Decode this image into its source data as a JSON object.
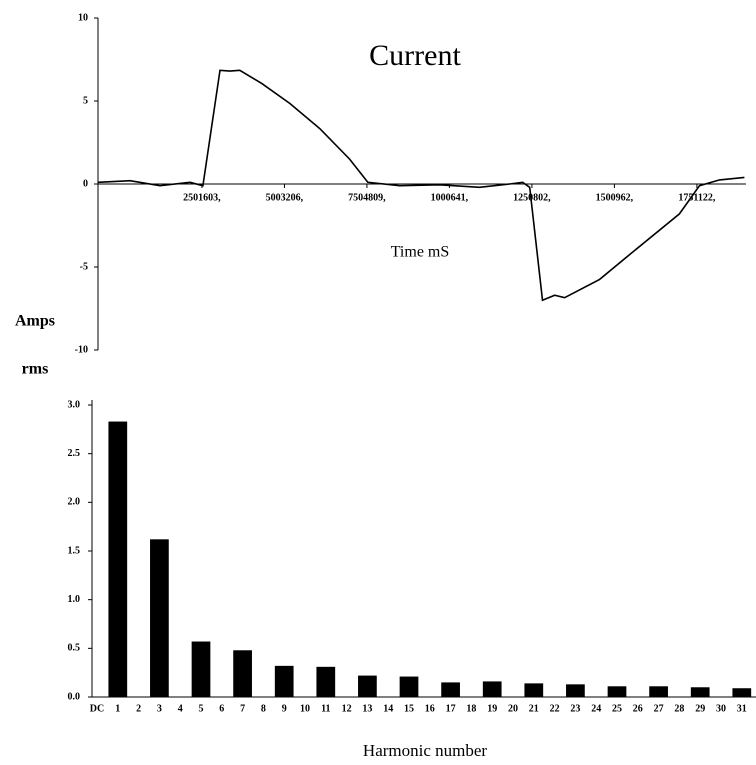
{
  "chart_data": [
    {
      "type": "line",
      "title": "Current",
      "xlabel": "Time mS",
      "ylabel": [
        "Amps",
        "rms"
      ],
      "x": [
        -0.65,
        0.32,
        1.23,
        2.14,
        2.53,
        3.05,
        3.35,
        3.65,
        4.32,
        5.17,
        6.08,
        6.98,
        7.53,
        8.5,
        9.71,
        10.92,
        11.83,
        12.23,
        12.44,
        12.83,
        13.2,
        13.5,
        14.56,
        15.47,
        16.98,
        17.59,
        18.2,
        18.95
      ],
      "values": [
        0.1,
        0.2,
        -0.1,
        0.1,
        -0.1,
        6.85,
        6.8,
        6.85,
        6.05,
        4.85,
        3.33,
        1.5,
        0.1,
        -0.1,
        -0.05,
        -0.2,
        0,
        0.1,
        -0.2,
        -7.0,
        -6.7,
        -6.85,
        -5.75,
        -4.25,
        -1.8,
        -0.1,
        0.25,
        0.4
      ],
      "color": "#000000",
      "xlim": [
        -0.65,
        19
      ],
      "ylim": [
        -10,
        10
      ],
      "xticks": [
        {
          "value": 2.501603,
          "label": "2501603,"
        },
        {
          "value": 5.003206,
          "label": "5003206,"
        },
        {
          "value": 7.504809,
          "label": "7504809,"
        },
        {
          "value": 10.00641,
          "label": "1000641,"
        },
        {
          "value": 12.50802,
          "label": "1250802,"
        },
        {
          "value": 15.00962,
          "label": "1500962,"
        },
        {
          "value": 17.51122,
          "label": "1751122,"
        }
      ],
      "yticks": [
        -10,
        -5,
        0,
        5,
        10
      ]
    },
    {
      "type": "bar",
      "xlabel": "Harmonic number",
      "categories": [
        "DC",
        "1",
        "2",
        "3",
        "4",
        "5",
        "6",
        "7",
        "8",
        "9",
        "10",
        "11",
        "12",
        "13",
        "14",
        "15",
        "16",
        "17",
        "18",
        "19",
        "20",
        "21",
        "22",
        "23",
        "24",
        "25",
        "26",
        "27",
        "28",
        "29",
        "30",
        "31"
      ],
      "values": [
        0,
        2.83,
        0,
        1.62,
        0,
        0.57,
        0,
        0.48,
        0,
        0.32,
        0,
        0.31,
        0,
        0.22,
        0,
        0.21,
        0,
        0.15,
        0,
        0.16,
        0,
        0.14,
        0,
        0.13,
        0,
        0.11,
        0,
        0.11,
        0,
        0.1,
        0,
        0.09
      ],
      "color": "#000000",
      "ylim": [
        0,
        3
      ],
      "yticks": [
        {
          "value": 0,
          "label": "0.0"
        },
        {
          "value": 0.5,
          "label": "0.5"
        },
        {
          "value": 1,
          "label": "1.0"
        },
        {
          "value": 1.5,
          "label": "1.5"
        },
        {
          "value": 2,
          "label": "2.0"
        },
        {
          "value": 2.5,
          "label": "2.5"
        },
        {
          "value": 3,
          "label": "3.0"
        }
      ]
    }
  ]
}
